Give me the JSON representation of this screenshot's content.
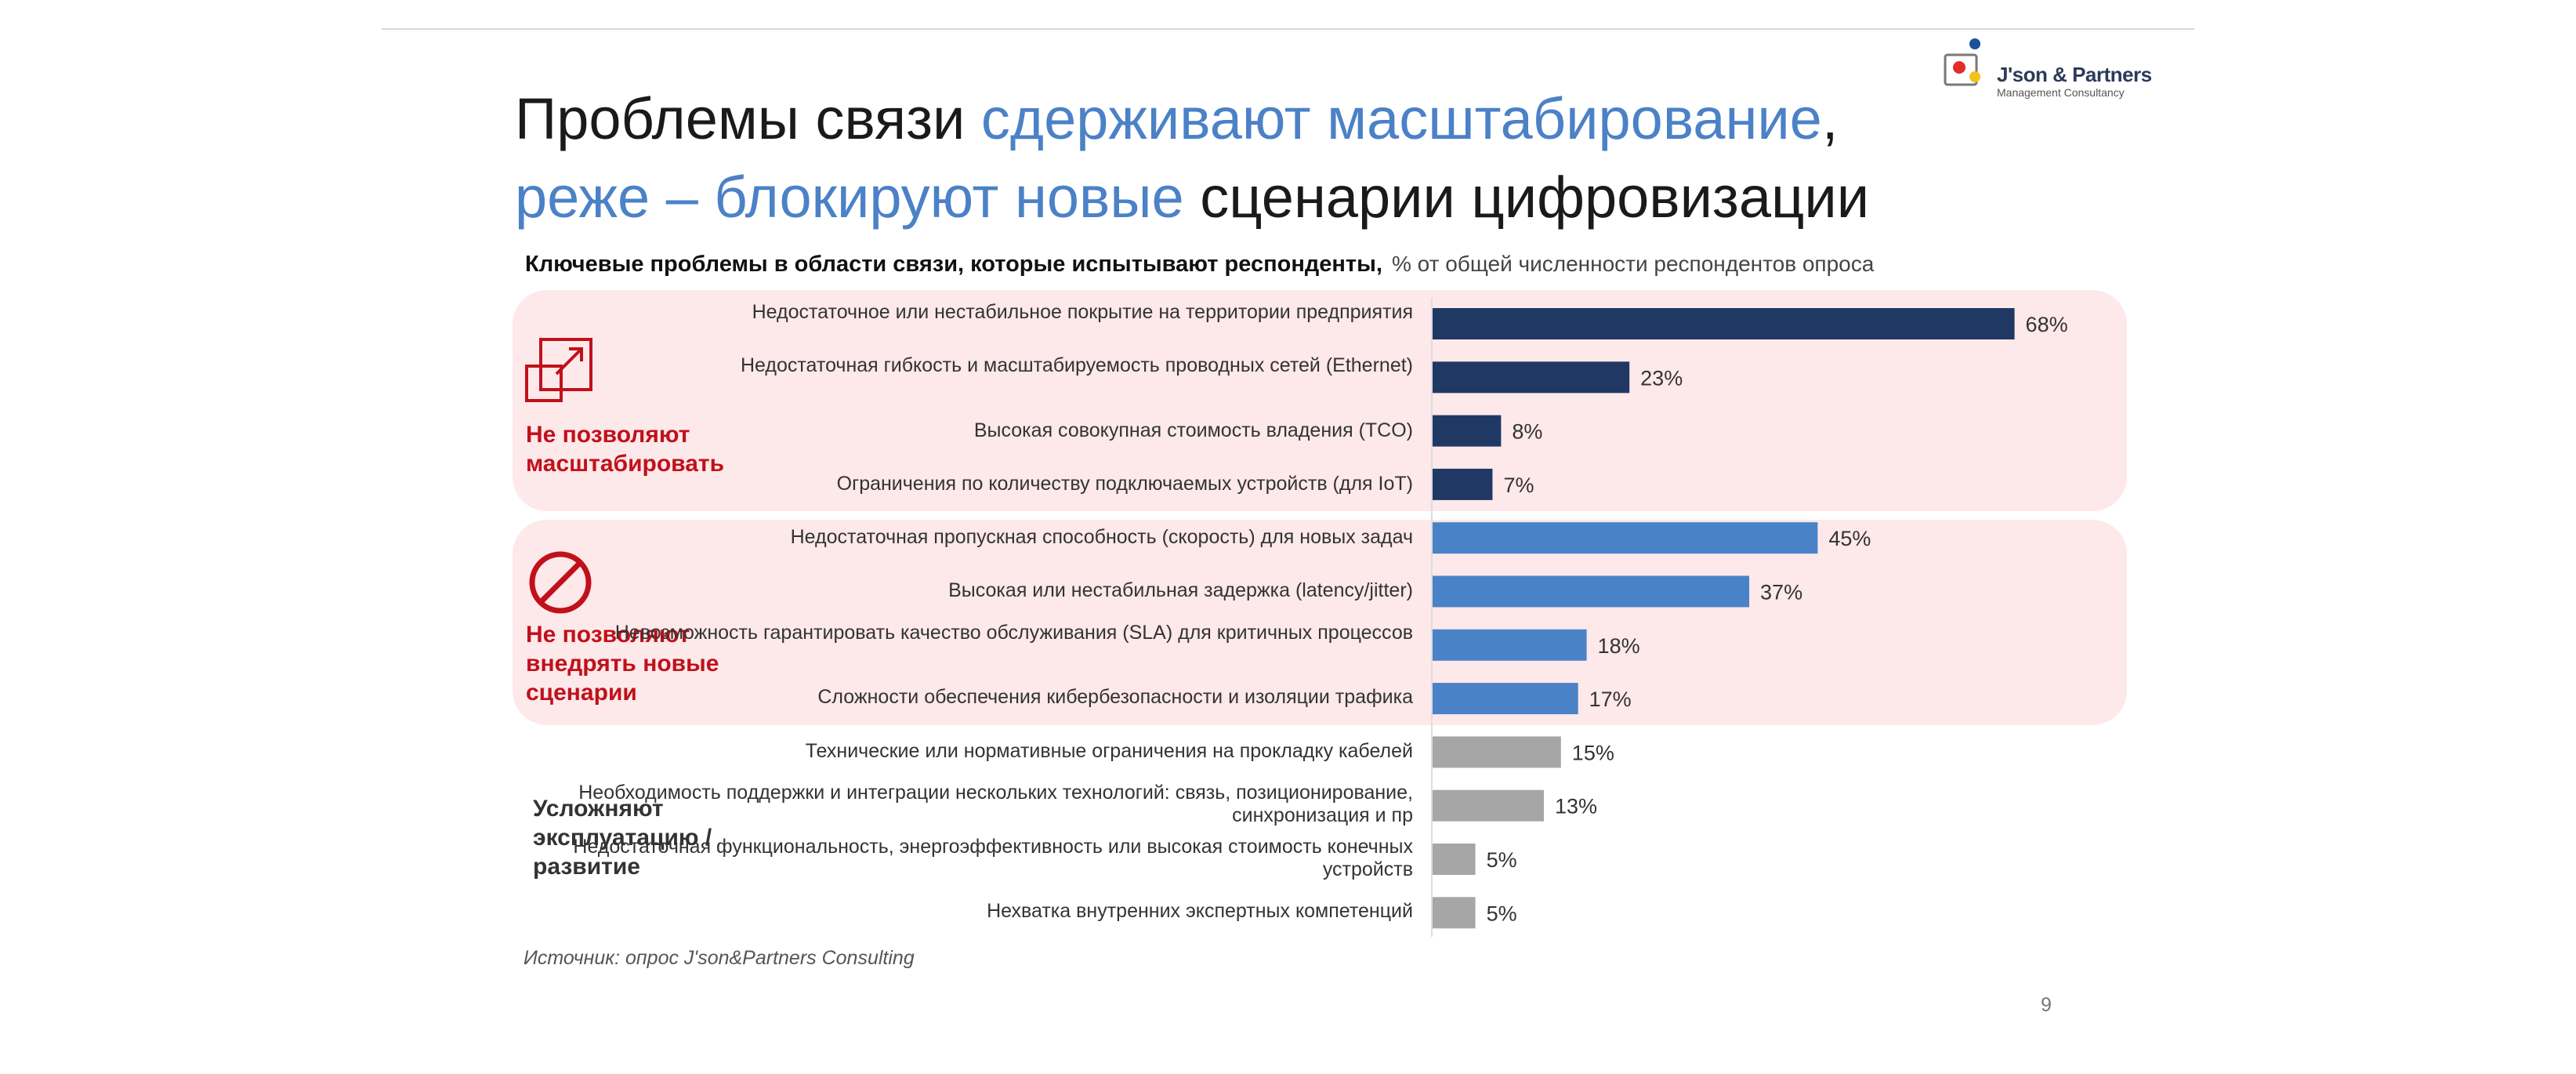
{
  "logo": {
    "text": "J'son & Partners",
    "sub": "Management Consultancy"
  },
  "title": {
    "line1_a": "Проблемы связи ",
    "line1_b": "сдерживают масштабирование",
    "line1_c": ",",
    "line2_a": "реже – блокируют новые",
    "line2_b": " сценарии цифровизации"
  },
  "subtitle": {
    "main": "Ключевые проблемы в области связи, которые испытывают респонденты,",
    "unit": "% от общей численности респондентов опроса"
  },
  "groups": [
    {
      "label": "Не позволяют масштабировать"
    },
    {
      "label": "Не позволяют внедрять новые сценарии"
    },
    {
      "label": "Усложняют эксплуатацию / развитие"
    }
  ],
  "colors": {
    "group1": "#203864",
    "group2": "#4a82c8",
    "group3": "#a6a6a6",
    "accent_red": "#c0111a",
    "title_blue": "#4b81c7"
  },
  "chart_data": {
    "type": "bar",
    "orientation": "horizontal",
    "categories": [
      "Недостаточное или нестабильное покрытие на территории предприятия",
      "Недостаточная гибкость и масштабируемость проводных сетей (Ethernet)",
      "Высокая совокупная стоимость владения (TCO)",
      "Ограничения по количеству подключаемых устройств (для IoT)",
      "Недостаточная пропускная способность (скорость) для новых задач",
      "Высокая или нестабильная задержка (latency/jitter)",
      "Невозможность гарантировать качество обслуживания (SLA) для критичных процессов",
      "Сложности обеспечения кибербезопасности и изоляции трафика",
      "Технические или нормативные ограничения на прокладку кабелей",
      "Необходимость поддержки и интеграции нескольких технологий: связь, позиционирование, синхронизация и пр",
      "Недостаточная функциональность, энергоэффективность или высокая стоимость конечных устройств",
      "Нехватка внутренних экспертных компетенций"
    ],
    "values": [
      68,
      23,
      8,
      7,
      45,
      37,
      18,
      17,
      15,
      13,
      5,
      5
    ],
    "value_labels": [
      "68%",
      "23%",
      "8%",
      "7%",
      "45%",
      "37%",
      "18%",
      "17%",
      "15%",
      "13%",
      "5%",
      "5%"
    ],
    "group_index": [
      0,
      0,
      0,
      0,
      1,
      1,
      1,
      1,
      2,
      2,
      2,
      2
    ],
    "title": "Ключевые проблемы в области связи, которые испытывают респонденты,",
    "xlabel": "% от общей численности респондентов опроса",
    "xlim": [
      0,
      100
    ],
    "grid": false
  },
  "footer": {
    "source": "Источник: опрос J'son&Partners Consulting",
    "page": "9"
  }
}
